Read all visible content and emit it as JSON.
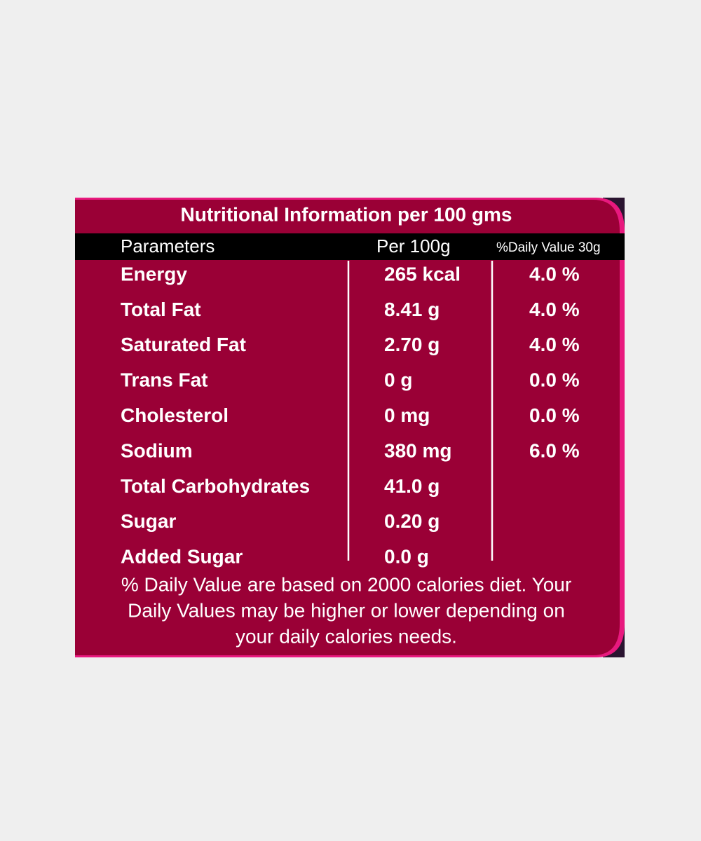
{
  "title": "Nutritional Information per 100 gms",
  "table": {
    "headers": [
      "Parameters",
      "Per 100g",
      "%Daily Value 30g"
    ],
    "rows": [
      {
        "parameter": "Energy",
        "per_100g": "265 kcal",
        "daily_value": "4.0 %"
      },
      {
        "parameter": "Total Fat",
        "per_100g": "8.41 g",
        "daily_value": "4.0 %"
      },
      {
        "parameter": "Saturated Fat",
        "per_100g": "2.70 g",
        "daily_value": "4.0 %"
      },
      {
        "parameter": "Trans Fat",
        "per_100g": "0 g",
        "daily_value": "0.0 %"
      },
      {
        "parameter": "Cholesterol",
        "per_100g": "0 mg",
        "daily_value": "0.0 %"
      },
      {
        "parameter": "Sodium",
        "per_100g": "380 mg",
        "daily_value": "6.0 %"
      },
      {
        "parameter": "Total Carbohydrates",
        "per_100g": "41.0 g"
      },
      {
        "parameter": "Sugar",
        "per_100g": "0.20 g"
      },
      {
        "parameter": "Added Sugar",
        "per_100g": "0.0 g"
      }
    ]
  },
  "footnote": [
    "% Daily Value are based on 2000 calories diet. Your",
    "Daily Values may be higher or lower depending on",
    "your daily calories needs."
  ]
}
